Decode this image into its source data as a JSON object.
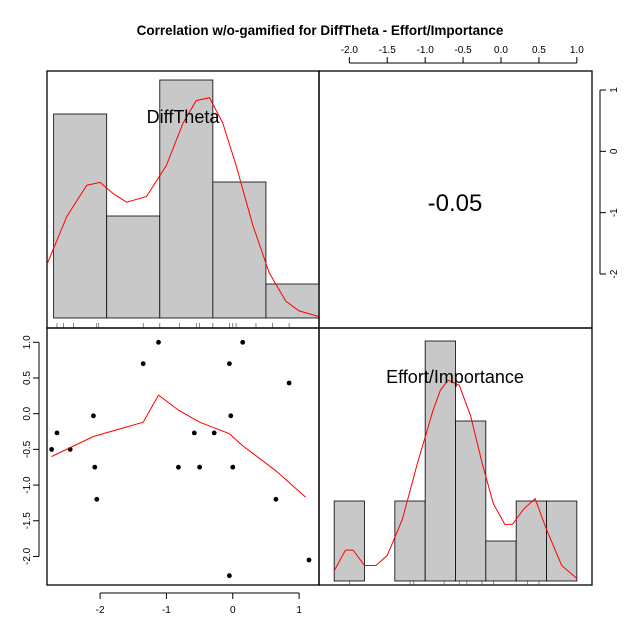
{
  "chart_data": {
    "type": "scatter",
    "title": "Correlation w/o-gamified for DiffTheta - Effort/Importance",
    "variables": [
      "DiffTheta",
      "Effort/Importance"
    ],
    "correlation_label": "-0.05",
    "axes": {
      "difftheta": {
        "range": [
          -2.8,
          1.3
        ],
        "ticks": [
          -2,
          -1,
          0,
          1
        ],
        "tick_labels": [
          "-2",
          "-1",
          "0",
          "1"
        ]
      },
      "effort": {
        "range": [
          -2.4,
          1.2
        ],
        "ticks": [
          -2,
          -1.5,
          -1,
          -0.5,
          0,
          0.5,
          1
        ],
        "tick_labels": [
          "-2.0",
          "-1.5",
          "-1.0",
          "-0.5",
          "0.0",
          "0.5",
          "1.0"
        ]
      },
      "upper_right_y": {
        "ticks": [
          1,
          0,
          -1,
          -2
        ],
        "tick_labels": [
          "1",
          "0",
          "-1",
          "-2"
        ]
      }
    },
    "histogram_difftheta": {
      "bins": [
        [
          -2.7,
          -1.9
        ],
        [
          -1.9,
          -1.1
        ],
        [
          -1.1,
          -0.3
        ],
        [
          -0.3,
          0.5
        ],
        [
          0.5,
          1.3
        ]
      ],
      "counts": [
        6,
        3,
        7,
        4,
        1
      ]
    },
    "density_difftheta": {
      "x": [
        -2.8,
        -2.5,
        -2.2,
        -2.0,
        -1.8,
        -1.6,
        -1.3,
        -1.0,
        -0.75,
        -0.55,
        -0.35,
        -0.15,
        0.05,
        0.3,
        0.55,
        0.8,
        1.0,
        1.3
      ],
      "y": [
        1.9,
        3.6,
        4.7,
        4.8,
        4.4,
        4.1,
        4.3,
        5.4,
        6.9,
        7.7,
        7.8,
        6.9,
        5.4,
        3.3,
        1.6,
        0.6,
        0.25,
        0.05
      ]
    },
    "rug_difftheta": [
      -2.65,
      -2.55,
      -2.4,
      -2.05,
      -2.02,
      -1.35,
      -1.1,
      -0.8,
      -0.55,
      -0.5,
      -0.3,
      -0.05,
      0.0,
      0.05,
      0.35,
      0.6,
      0.85
    ],
    "histogram_effort": {
      "bins": [
        [
          -2.2,
          -1.8
        ],
        [
          -1.8,
          -1.4
        ],
        [
          -1.4,
          -1.0
        ],
        [
          -1.0,
          -0.6
        ],
        [
          -0.6,
          -0.2
        ],
        [
          -0.2,
          0.2
        ],
        [
          0.2,
          0.6
        ],
        [
          0.6,
          1.0
        ]
      ],
      "counts": [
        2,
        0,
        2,
        6,
        4,
        1,
        2,
        2
      ]
    },
    "density_effort": {
      "x": [
        -2.2,
        -2.05,
        -1.95,
        -1.8,
        -1.65,
        -1.5,
        -1.3,
        -1.1,
        -0.9,
        -0.8,
        -0.7,
        -0.55,
        -0.4,
        -0.25,
        -0.1,
        0.05,
        0.15,
        0.3,
        0.45,
        0.6,
        0.8,
        1.0
      ],
      "y": [
        0.2,
        0.6,
        0.6,
        0.3,
        0.3,
        0.5,
        1.2,
        2.3,
        3.3,
        3.7,
        3.9,
        3.8,
        3.2,
        2.3,
        1.5,
        1.1,
        1.1,
        1.4,
        1.6,
        1.0,
        0.3,
        0.05
      ]
    },
    "rug_effort": [
      -2.0,
      -1.2,
      -1.15,
      -0.75,
      -0.55,
      -0.45,
      -0.25,
      -0.1,
      0.35,
      0.5
    ],
    "scatter": {
      "x": [
        -2.73,
        -2.65,
        -2.45,
        -2.1,
        -2.08,
        -2.05,
        -1.35,
        -1.12,
        -0.82,
        -0.58,
        -0.5,
        -0.28,
        -0.05,
        -0.03,
        0.0,
        0.15,
        0.65,
        0.85,
        1.15,
        -0.05
      ],
      "y": [
        -0.5,
        -0.27,
        -0.5,
        -0.03,
        -0.75,
        -1.2,
        0.7,
        1.0,
        -0.75,
        -0.27,
        -0.75,
        -0.27,
        0.7,
        -0.03,
        -0.75,
        1.0,
        -1.2,
        0.43,
        -2.05,
        -2.27
      ]
    },
    "smoother": {
      "x": [
        -2.73,
        -2.1,
        -1.35,
        -1.12,
        -0.82,
        -0.5,
        -0.05,
        0.15,
        0.65,
        1.1
      ],
      "y": [
        -0.6,
        -0.32,
        -0.12,
        0.26,
        0.05,
        -0.12,
        -0.28,
        -0.45,
        -0.8,
        -1.17
      ]
    },
    "grid": false,
    "legend": "none"
  }
}
